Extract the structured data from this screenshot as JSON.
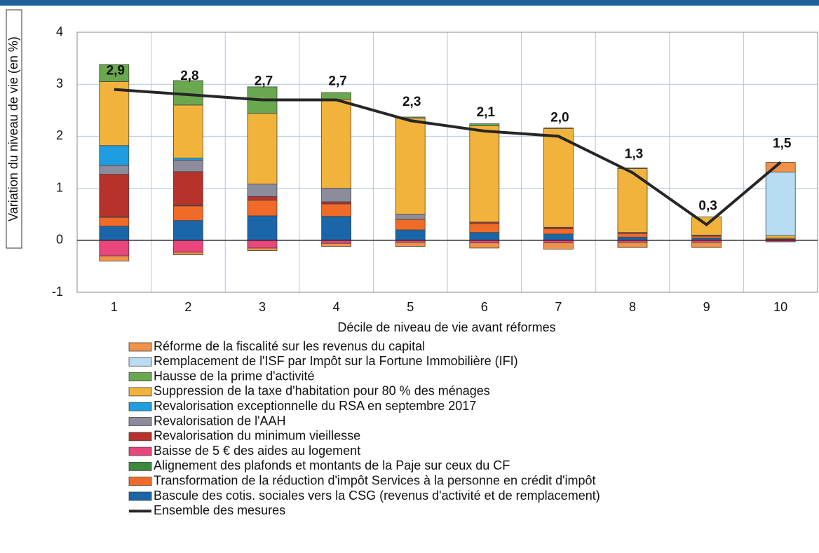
{
  "chart_data": {
    "type": "bar",
    "stacked": true,
    "y_label": "Variation du niveau de vie (en %)",
    "x_label": "Décile de niveau de vie avant réformes",
    "categories": [
      "1",
      "2",
      "3",
      "4",
      "5",
      "6",
      "7",
      "8",
      "9",
      "10"
    ],
    "ylim": [
      -1,
      4
    ],
    "yticks": [
      -1,
      0,
      1,
      2,
      3,
      4
    ],
    "grid": true,
    "series": [
      {
        "name": "Réforme de la fiscalité sur les revenus du capital",
        "color": "#f0924a",
        "values": [
          -0.1,
          -0.05,
          -0.05,
          -0.06,
          -0.08,
          -0.1,
          -0.12,
          -0.1,
          -0.1,
          0.19
        ]
      },
      {
        "name": "Remplacement de l'ISF par Impôt sur la Fortune Immobilière (IFI)",
        "color": "#b8dcf2",
        "values": [
          0,
          0,
          0,
          0,
          0,
          0,
          0,
          0,
          0,
          1.22
        ]
      },
      {
        "name": "Hausse de la prime d'activité",
        "color": "#6aa84f",
        "values": [
          0.33,
          0.47,
          0.51,
          0.13,
          0.02,
          0.04,
          0.01,
          0.01,
          0,
          0
        ]
      },
      {
        "name": "Suppression de la taxe d'habitation pour 80 % des ménages",
        "color": "#f2b33d",
        "values": [
          1.23,
          1.02,
          1.36,
          1.71,
          1.85,
          1.85,
          1.9,
          1.23,
          0.35,
          0.05
        ]
      },
      {
        "name": "Revalorisation exceptionnelle du RSA en septembre 2017",
        "color": "#1e9ee0",
        "values": [
          0.38,
          0.04,
          0,
          0,
          0,
          0,
          0,
          0,
          0,
          0
        ]
      },
      {
        "name": "Revalorisation de l'AAH",
        "color": "#8c8c9c",
        "values": [
          0.17,
          0.22,
          0.24,
          0.26,
          0.1,
          0,
          0,
          0,
          0,
          0
        ]
      },
      {
        "name": "Revalorisation du minimum vieillesse",
        "color": "#b8322c",
        "values": [
          0.82,
          0.65,
          0.07,
          0.04,
          0,
          0.03,
          0.03,
          0.02,
          0.02,
          0
        ]
      },
      {
        "name": "Baisse de 5 € des aides au logement",
        "color": "#e8467c",
        "values": [
          -0.3,
          -0.23,
          -0.15,
          -0.06,
          -0.04,
          -0.05,
          -0.05,
          -0.04,
          -0.04,
          -0.03
        ]
      },
      {
        "name": "Alignement des plafonds et montants de la Paje sur ceux du CF",
        "color": "#3a8a3a",
        "values": [
          0.01,
          0.01,
          0,
          0,
          0,
          0,
          0,
          0,
          0,
          0
        ]
      },
      {
        "name": "Transformation de la réduction d'impôt Services à la personne en crédit d'impôt",
        "color": "#f06a28",
        "values": [
          0.17,
          0.28,
          0.3,
          0.24,
          0.2,
          0.17,
          0.1,
          0.07,
          0.04,
          0.02
        ]
      },
      {
        "name": "Bascule des cotis. sociales vers la CSG (revenus d'activité et de remplacement)",
        "color": "#1a66a8",
        "values": [
          0.27,
          0.38,
          0.47,
          0.46,
          0.2,
          0.15,
          0.12,
          0.06,
          0.04,
          0.02
        ]
      },
      {
        "name": "Ensemble des mesures",
        "type": "line",
        "color": "#262626",
        "values": [
          2.9,
          2.8,
          2.7,
          2.7,
          2.3,
          2.1,
          2.0,
          1.3,
          0.3,
          1.5
        ],
        "value_labels": [
          "2,9",
          "2,8",
          "2,7",
          "2,7",
          "2,3",
          "2,1",
          "2,0",
          "1,3",
          "0,3",
          "1,5"
        ]
      }
    ]
  }
}
